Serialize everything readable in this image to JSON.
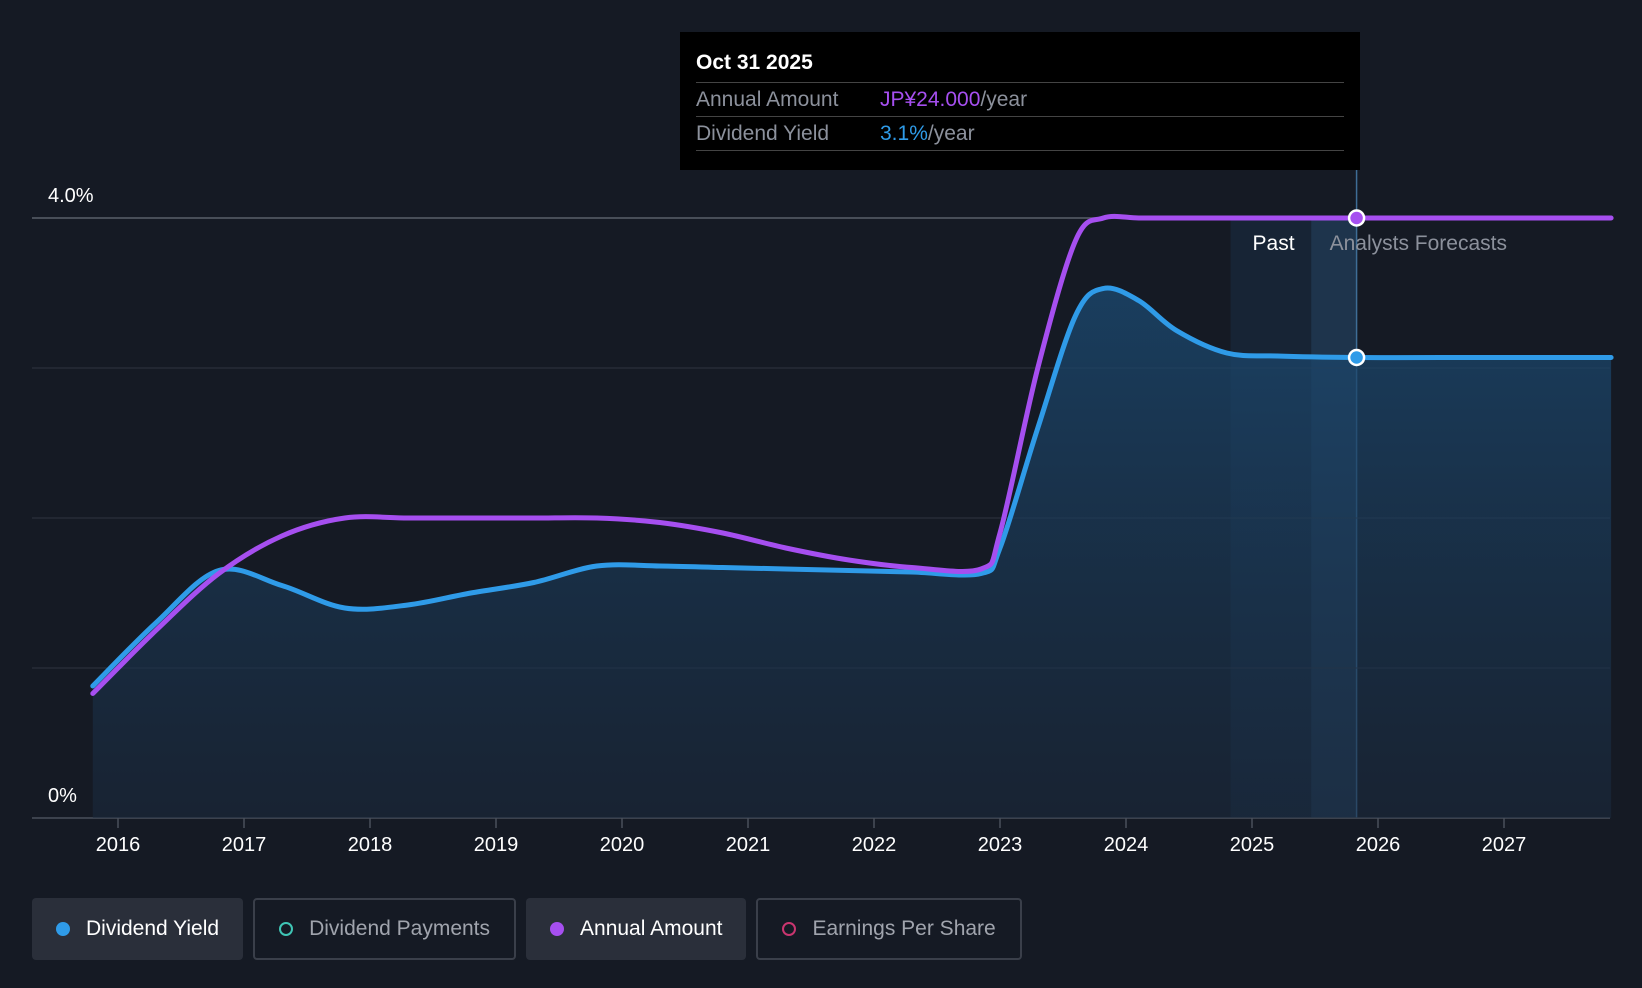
{
  "tooltip": {
    "date": "Oct 31 2025",
    "rows": [
      {
        "label": "Annual Amount",
        "value": "JP¥24.000",
        "unit": "/year"
      },
      {
        "label": "Dividend Yield",
        "value": "3.1%",
        "unit": "/year"
      }
    ]
  },
  "legend": [
    {
      "label": "Dividend Yield",
      "color": "#2f9be8",
      "active": true
    },
    {
      "label": "Dividend Payments",
      "color": "#3fc5b5",
      "active": false
    },
    {
      "label": "Annual Amount",
      "color": "#a64ff0",
      "active": true
    },
    {
      "label": "Earnings Per Share",
      "color": "#c9356f",
      "active": false
    }
  ],
  "chart_data": {
    "type": "line",
    "y_tick_labels": [
      "4.0%",
      "0%"
    ],
    "ylim": [
      0,
      4.0
    ],
    "x_tick_labels": [
      "2016",
      "2017",
      "2018",
      "2019",
      "2020",
      "2021",
      "2022",
      "2023",
      "2024",
      "2025",
      "2026",
      "2027"
    ],
    "xlim": [
      2015.3,
      2027.85
    ],
    "grid": true,
    "region_labels": {
      "past": "Past",
      "forecast": "Analysts Forecasts"
    },
    "marker_x": 2025.83,
    "series": [
      {
        "name": "Dividend Yield",
        "color": "#2f9be8",
        "filled": true,
        "x": [
          2015.8,
          2016.3,
          2016.8,
          2017.3,
          2017.8,
          2018.3,
          2018.8,
          2019.3,
          2019.8,
          2020.3,
          2020.8,
          2021.3,
          2021.8,
          2022.3,
          2022.85,
          2023.0,
          2023.3,
          2023.6,
          2023.82,
          2024.1,
          2024.4,
          2024.8,
          2025.2,
          2025.83,
          2026.5,
          2027.85
        ],
        "y": [
          0.88,
          1.3,
          1.65,
          1.55,
          1.4,
          1.42,
          1.5,
          1.57,
          1.68,
          1.68,
          1.67,
          1.66,
          1.65,
          1.64,
          1.63,
          1.8,
          2.6,
          3.35,
          3.53,
          3.45,
          3.25,
          3.1,
          3.08,
          3.07,
          3.07,
          3.07
        ]
      },
      {
        "name": "Annual Amount",
        "color": "#a64ff0",
        "filled": false,
        "x": [
          2015.8,
          2016.3,
          2016.8,
          2017.3,
          2017.8,
          2018.3,
          2018.8,
          2019.3,
          2019.8,
          2020.3,
          2020.8,
          2021.3,
          2021.8,
          2022.3,
          2022.85,
          2023.0,
          2023.3,
          2023.6,
          2023.82,
          2024.1,
          2024.4,
          2024.8,
          2025.2,
          2025.83,
          2026.5,
          2027.85
        ],
        "y": [
          0.83,
          1.25,
          1.63,
          1.88,
          2.0,
          2.0,
          2.0,
          2.0,
          2.0,
          1.97,
          1.9,
          1.8,
          1.72,
          1.67,
          1.66,
          1.9,
          3.0,
          3.85,
          4.0,
          4.0,
          4.0,
          4.0,
          4.0,
          4.0,
          4.0,
          4.0
        ]
      }
    ]
  }
}
